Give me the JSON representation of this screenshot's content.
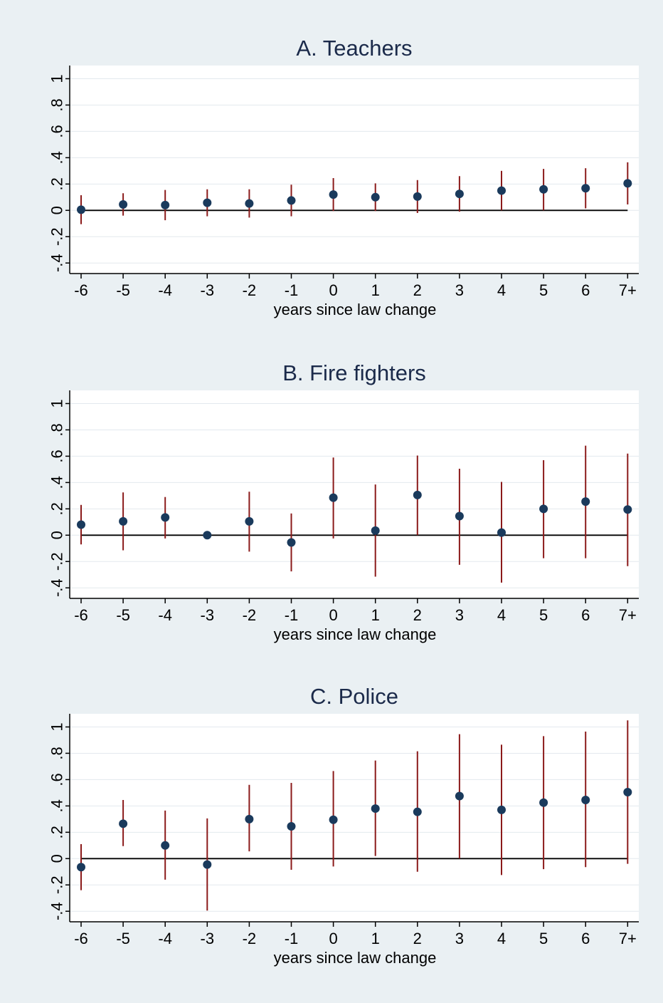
{
  "colors": {
    "background": "#eaf0f3",
    "plot_bg": "#ffffff",
    "title": "#1b2a4a",
    "marker": "#1a3a5c",
    "ci": "#8b1a1a",
    "axis": "#000000",
    "grid": "#e3e9ee"
  },
  "chart_data": [
    {
      "type": "scatter",
      "title": "A. Teachers",
      "xlabel": "years since law change",
      "ylabel": "",
      "categories": [
        "-6",
        "-5",
        "-4",
        "-3",
        "-2",
        "-1",
        "0",
        "1",
        "2",
        "3",
        "4",
        "5",
        "6",
        "7+"
      ],
      "yticks": [
        "-.4",
        "-.2",
        "0",
        ".2",
        ".4",
        ".6",
        ".8",
        "1"
      ],
      "ylim": [
        -0.48,
        1.1
      ],
      "grid": true,
      "reference_line": 0,
      "series": [
        {
          "point": [
            0.005,
            0.045,
            0.04,
            0.058,
            0.052,
            0.075,
            0.12,
            0.1,
            0.105,
            0.125,
            0.15,
            0.16,
            0.168,
            0.205
          ],
          "lower": [
            -0.105,
            -0.04,
            -0.075,
            -0.045,
            -0.055,
            -0.045,
            -0.005,
            -0.005,
            -0.02,
            -0.01,
            0.0,
            0.0,
            0.015,
            0.045
          ],
          "upper": [
            0.115,
            0.13,
            0.155,
            0.16,
            0.16,
            0.195,
            0.245,
            0.205,
            0.23,
            0.26,
            0.3,
            0.315,
            0.32,
            0.365
          ]
        }
      ]
    },
    {
      "type": "scatter",
      "title": "B. Fire fighters",
      "xlabel": "years since law change",
      "ylabel": "",
      "categories": [
        "-6",
        "-5",
        "-4",
        "-3",
        "-2",
        "-1",
        "0",
        "1",
        "2",
        "3",
        "4",
        "5",
        "6",
        "7+"
      ],
      "yticks": [
        "-.4",
        "-.2",
        "0",
        ".2",
        ".4",
        ".6",
        ".8",
        "1"
      ],
      "ylim": [
        -0.48,
        1.1
      ],
      "grid": true,
      "reference_line": 0,
      "series": [
        {
          "point": [
            0.08,
            0.105,
            0.135,
            0.0,
            0.105,
            -0.055,
            0.285,
            0.035,
            0.305,
            0.145,
            0.02,
            0.2,
            0.255,
            0.195
          ],
          "lower": [
            -0.07,
            -0.115,
            -0.025,
            0.0,
            -0.125,
            -0.275,
            -0.025,
            -0.315,
            0.0,
            -0.225,
            -0.36,
            -0.175,
            -0.175,
            -0.235
          ],
          "upper": [
            0.23,
            0.325,
            0.29,
            0.0,
            0.33,
            0.165,
            0.59,
            0.385,
            0.605,
            0.505,
            0.405,
            0.57,
            0.68,
            0.62
          ]
        }
      ]
    },
    {
      "type": "scatter",
      "title": "C. Police",
      "xlabel": "years since law change",
      "ylabel": "",
      "categories": [
        "-6",
        "-5",
        "-4",
        "-3",
        "-2",
        "-1",
        "0",
        "1",
        "2",
        "3",
        "4",
        "5",
        "6",
        "7+"
      ],
      "yticks": [
        "-.4",
        "-.2",
        "0",
        ".2",
        ".4",
        ".6",
        ".8",
        "1"
      ],
      "ylim": [
        -0.48,
        1.1
      ],
      "grid": true,
      "reference_line": 0,
      "series": [
        {
          "point": [
            -0.065,
            0.265,
            0.1,
            -0.045,
            0.3,
            0.245,
            0.295,
            0.38,
            0.355,
            0.475,
            0.37,
            0.425,
            0.445,
            0.505
          ],
          "lower": [
            -0.24,
            0.095,
            -0.16,
            -0.395,
            0.055,
            -0.085,
            -0.06,
            0.02,
            -0.1,
            0.0,
            -0.125,
            -0.08,
            -0.065,
            -0.04
          ],
          "upper": [
            0.11,
            0.445,
            0.365,
            0.305,
            0.56,
            0.575,
            0.665,
            0.745,
            0.815,
            0.945,
            0.865,
            0.93,
            0.965,
            1.05
          ]
        }
      ]
    }
  ]
}
